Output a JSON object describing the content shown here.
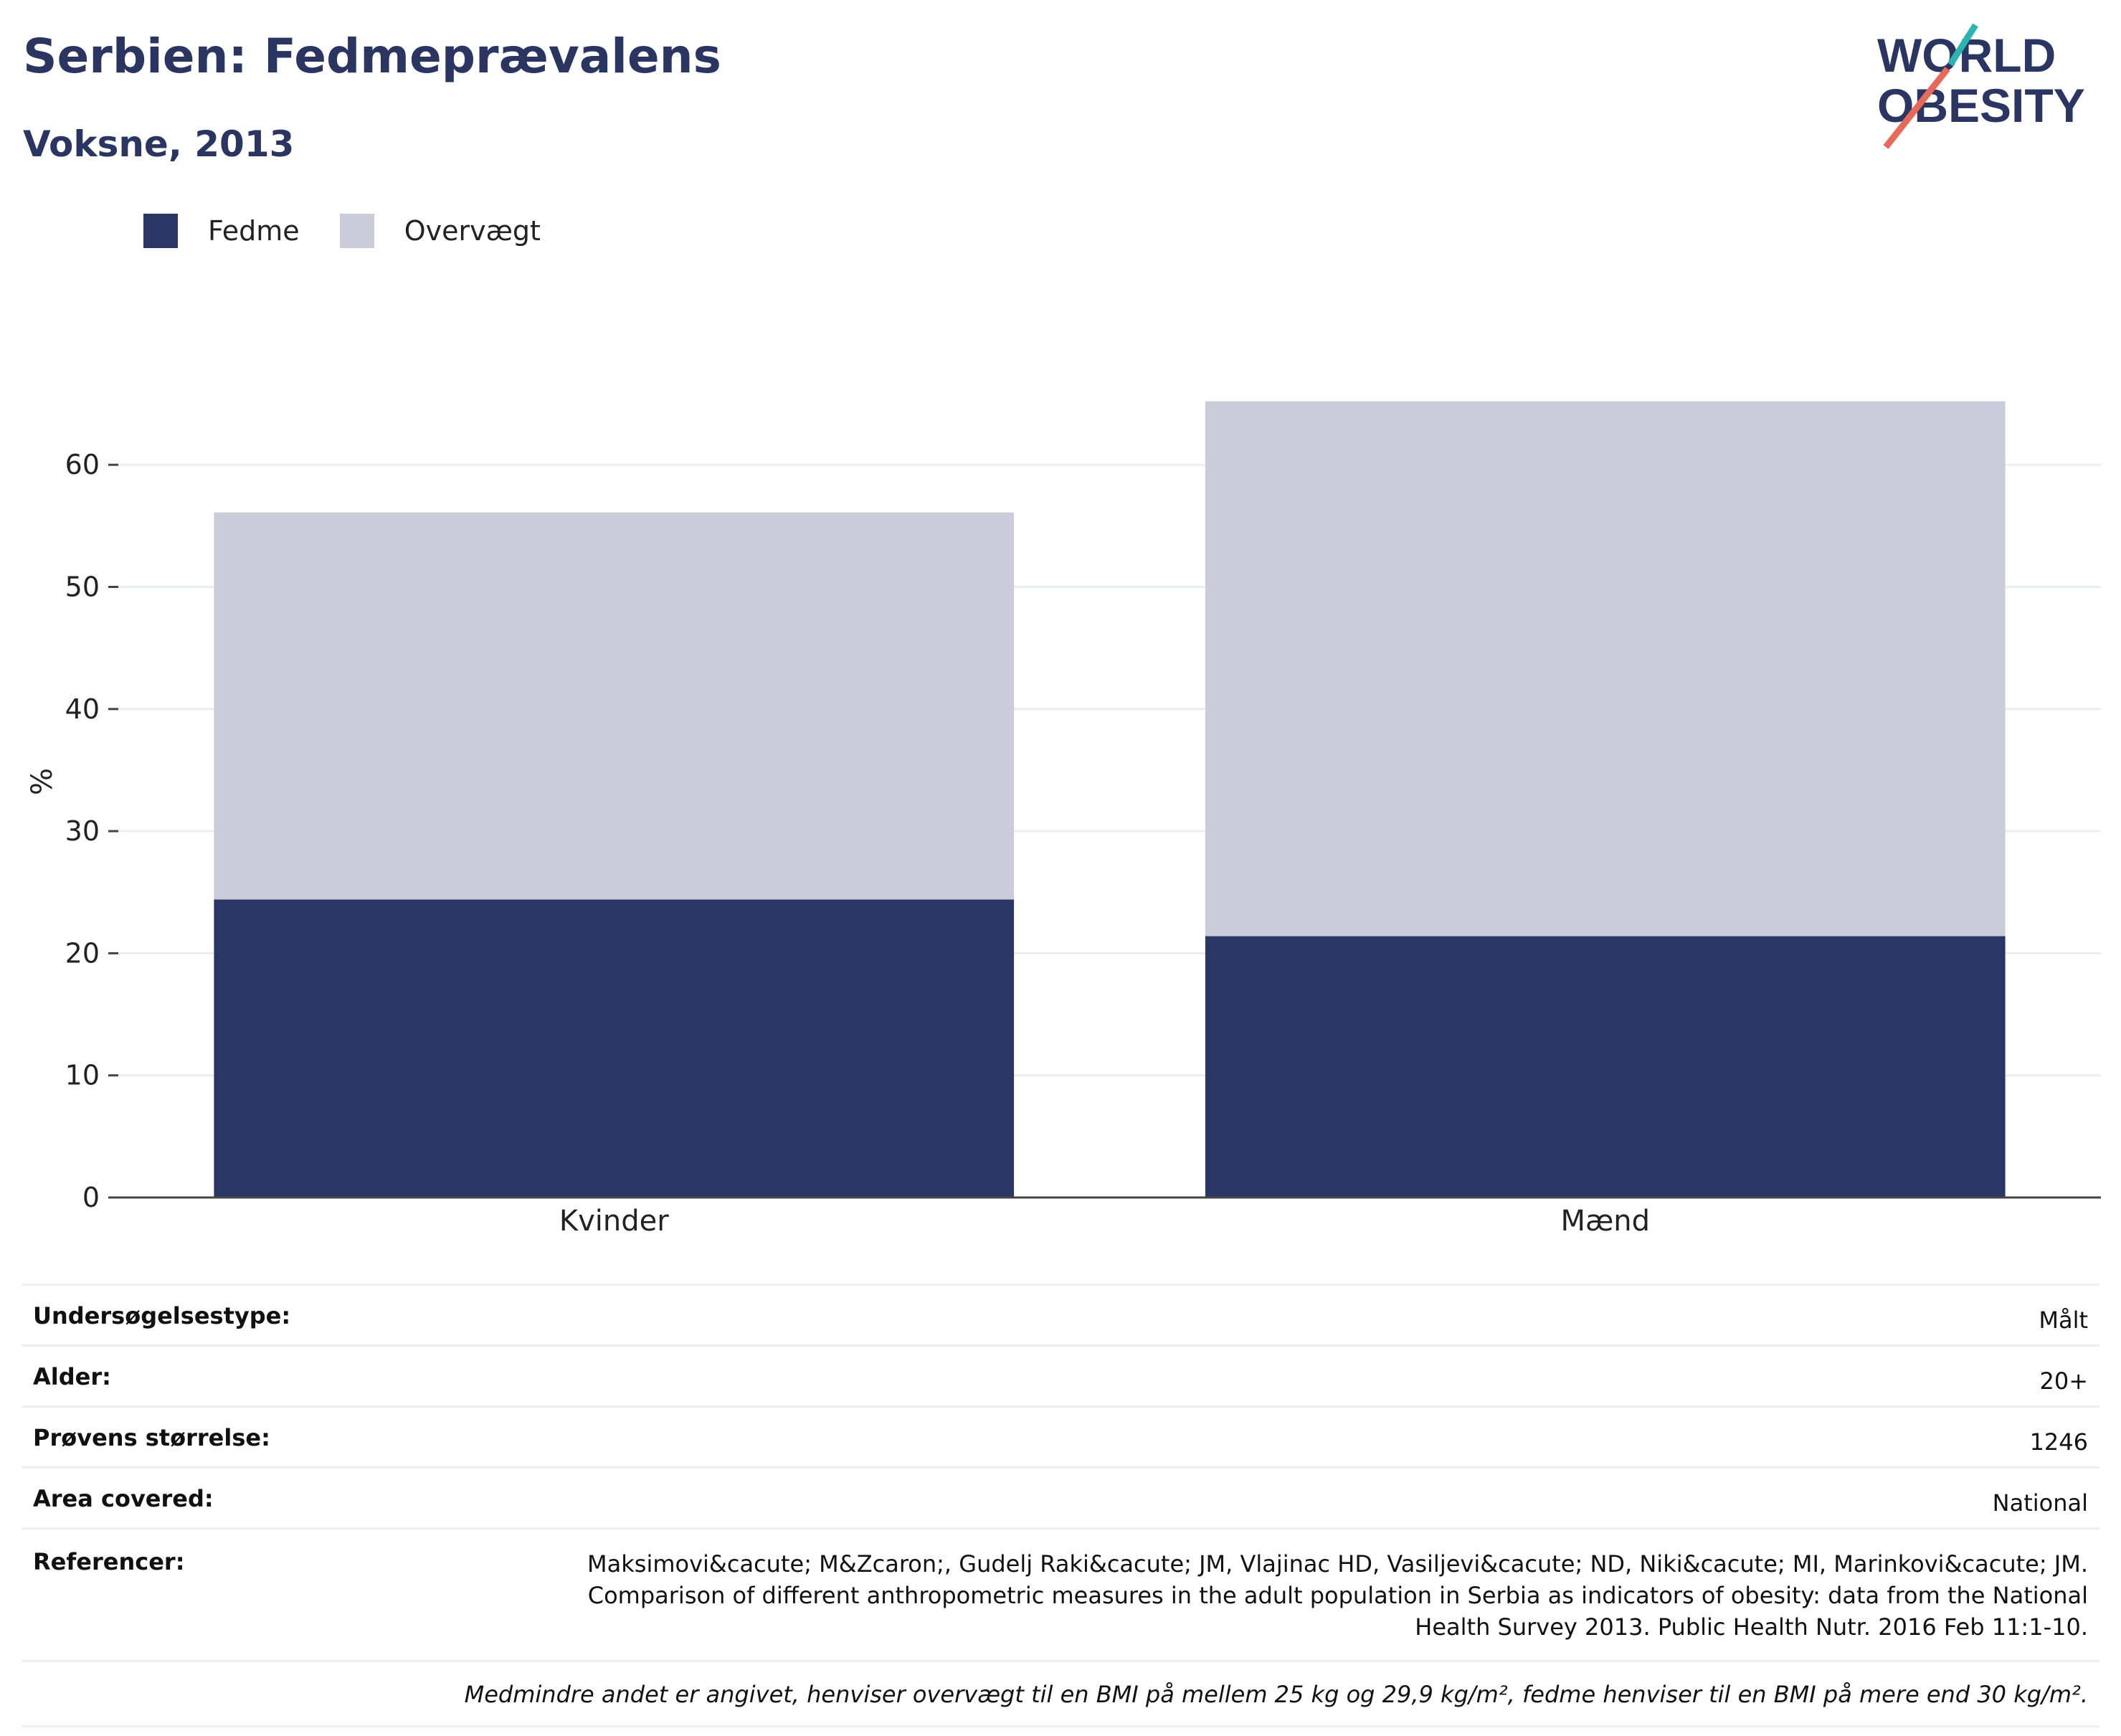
{
  "header": {
    "title": "Serbien: Fedmeprævalens",
    "subtitle": "Voksne, 2013"
  },
  "logo": {
    "line1": "WORLD",
    "line2": "OBESITY"
  },
  "colors": {
    "fedme": "#2a3663",
    "overvaegt": "#cacdd9",
    "brand": "#2a3562",
    "teal": "#2bb5b0",
    "coral": "#e8685a"
  },
  "chart_data": {
    "type": "bar",
    "stacked": true,
    "categories": [
      "Kvinder",
      "Mænd"
    ],
    "series": [
      {
        "name": "Fedme",
        "values": [
          24.4,
          21.4
        ]
      },
      {
        "name": "Overvægt",
        "values": [
          31.7,
          43.8
        ]
      }
    ],
    "ylabel": "%",
    "ylim": [
      0,
      70
    ],
    "yticks": [
      0,
      10,
      20,
      30,
      40,
      50,
      60
    ],
    "grid": true,
    "legend": "top-left"
  },
  "info": {
    "rows": [
      {
        "label": "Undersøgelsestype:",
        "value": "Målt"
      },
      {
        "label": "Alder:",
        "value": "20+"
      },
      {
        "label": "Prøvens størrelse:",
        "value": "1246"
      },
      {
        "label": "Area covered:",
        "value": "National"
      }
    ],
    "references_label": "Referencer:",
    "references": [
      "Maksimovi&cacute; M&Zcaron;, Gudelj Raki&cacute; JM, Vlajinac HD, Vasiljevi&cacute; ND, Niki&cacute; MI, Marinkovi&cacute; JM.",
      "Comparison of different anthropometric measures in the adult population in Serbia as indicators of obesity: data from the National",
      "Health Survey 2013. Public Health Nutr. 2016 Feb 11:1-10."
    ],
    "note": "Medmindre andet er angivet, henviser overvægt til en BMI på mellem 25 kg og 29,9 kg/m², fedme henviser til en BMI på mere end 30 kg/m²."
  }
}
